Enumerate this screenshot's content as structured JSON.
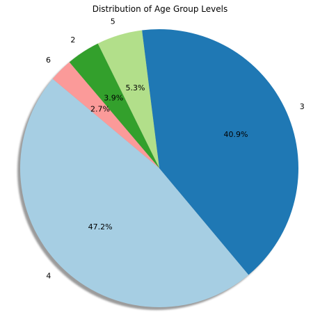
{
  "chart_data": {
    "type": "pie",
    "title": "Distribution of Age Group Levels",
    "start_angle_deg": 140,
    "direction": "counterclockwise",
    "shadow": true,
    "slices": [
      {
        "label": "4",
        "value": 47.2,
        "pct_label": "47.2%",
        "color": "#a6cee3"
      },
      {
        "label": "3",
        "value": 40.9,
        "pct_label": "40.9%",
        "color": "#1f78b4"
      },
      {
        "label": "5",
        "value": 5.3,
        "pct_label": "5.3%",
        "color": "#b2df8a"
      },
      {
        "label": "2",
        "value": 3.9,
        "pct_label": "3.9%",
        "color": "#33a02c"
      },
      {
        "label": "6",
        "value": 2.7,
        "pct_label": "2.7%",
        "color": "#fb9a99"
      }
    ]
  }
}
